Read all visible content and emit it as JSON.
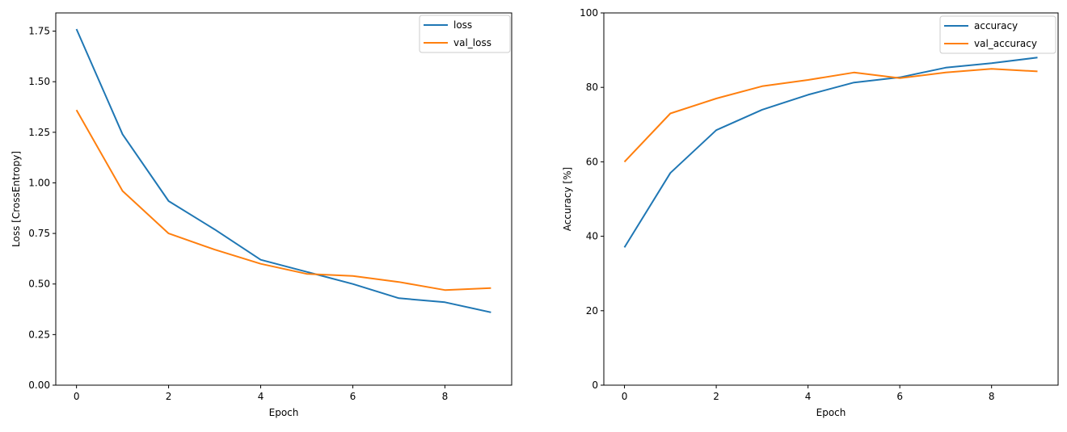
{
  "figure": {
    "background": "#ffffff"
  },
  "chart_data": [
    {
      "type": "line",
      "name": "loss",
      "title": "",
      "xlabel": "Epoch",
      "ylabel": "Loss [CrossEntropy]",
      "x": [
        0,
        1,
        2,
        3,
        4,
        5,
        6,
        7,
        8,
        9
      ],
      "series": [
        {
          "name": "loss",
          "color": "#1f77b4",
          "values": [
            1.76,
            1.24,
            0.91,
            0.77,
            0.62,
            0.56,
            0.5,
            0.43,
            0.41,
            0.36
          ]
        },
        {
          "name": "val_loss",
          "color": "#ff7f0e",
          "values": [
            1.36,
            0.96,
            0.75,
            0.67,
            0.6,
            0.55,
            0.54,
            0.51,
            0.47,
            0.48
          ]
        }
      ],
      "xlim": [
        -0.45,
        9.45
      ],
      "ylim": [
        0,
        1.84
      ],
      "xticks": [
        {
          "v": 0,
          "label": "0"
        },
        {
          "v": 2,
          "label": "2"
        },
        {
          "v": 4,
          "label": "4"
        },
        {
          "v": 6,
          "label": "6"
        },
        {
          "v": 8,
          "label": "8"
        }
      ],
      "yticks": [
        {
          "v": 0.0,
          "label": "0.00"
        },
        {
          "v": 0.25,
          "label": "0.25"
        },
        {
          "v": 0.5,
          "label": "0.50"
        },
        {
          "v": 0.75,
          "label": "0.75"
        },
        {
          "v": 1.0,
          "label": "1.00"
        },
        {
          "v": 1.25,
          "label": "1.25"
        },
        {
          "v": 1.5,
          "label": "1.50"
        },
        {
          "v": 1.75,
          "label": "1.75"
        }
      ],
      "legend": {
        "position": "upper right",
        "labels": [
          "loss",
          "val_loss"
        ]
      },
      "grid": false
    },
    {
      "type": "line",
      "name": "accuracy",
      "title": "",
      "xlabel": "Epoch",
      "ylabel": "Accuracy [%]",
      "x": [
        0,
        1,
        2,
        3,
        4,
        5,
        6,
        7,
        8,
        9
      ],
      "series": [
        {
          "name": "accuracy",
          "color": "#1f77b4",
          "values": [
            37.0,
            57.0,
            68.5,
            74.0,
            78.0,
            81.3,
            82.7,
            85.3,
            86.5,
            88.0
          ]
        },
        {
          "name": "val_accuracy",
          "color": "#ff7f0e",
          "values": [
            60.0,
            73.0,
            77.0,
            80.3,
            82.0,
            84.0,
            82.5,
            84.0,
            85.0,
            84.3
          ]
        }
      ],
      "xlim": [
        -0.45,
        9.45
      ],
      "ylim": [
        0,
        100
      ],
      "xticks": [
        {
          "v": 0,
          "label": "0"
        },
        {
          "v": 2,
          "label": "2"
        },
        {
          "v": 4,
          "label": "4"
        },
        {
          "v": 6,
          "label": "6"
        },
        {
          "v": 8,
          "label": "8"
        }
      ],
      "yticks": [
        {
          "v": 0,
          "label": "0"
        },
        {
          "v": 20,
          "label": "20"
        },
        {
          "v": 40,
          "label": "40"
        },
        {
          "v": 60,
          "label": "60"
        },
        {
          "v": 80,
          "label": "80"
        },
        {
          "v": 100,
          "label": "100"
        }
      ],
      "legend": {
        "position": "upper right",
        "labels": [
          "accuracy",
          "val_accuracy"
        ]
      },
      "grid": false
    }
  ]
}
